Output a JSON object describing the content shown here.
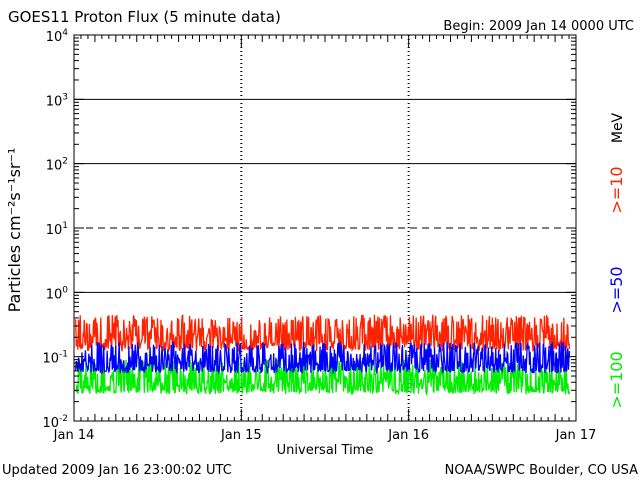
{
  "header": {
    "title": "GOES11 Proton Flux (5 minute data)",
    "begin": "Begin: 2009 Jan 14 0000 UTC"
  },
  "footer": {
    "updated": "Updated 2009 Jan 16 23:00:02 UTC",
    "credit": "NOAA/SWPC Boulder, CO USA"
  },
  "chart_data": {
    "type": "line",
    "title": "GOES11 Proton Flux (5 minute data)",
    "xlabel": "Universal Time",
    "ylabel": "Particles cm⁻²s⁻¹sr⁻¹",
    "yscale": "log",
    "ylim": [
      0.01,
      10000
    ],
    "xlim_days": [
      0,
      3
    ],
    "x_tick_labels": [
      "Jan 14",
      "Jan 15",
      "Jan 16",
      "Jan 17"
    ],
    "y_tick_labels": [
      {
        "base": "10",
        "exp": "4"
      },
      {
        "base": "10",
        "exp": "3"
      },
      {
        "base": "10",
        "exp": "2"
      },
      {
        "base": "10",
        "exp": "1"
      },
      {
        "base": "10",
        "exp": "0"
      },
      {
        "base": "10",
        "exp": "-1"
      },
      {
        "base": "10",
        "exp": "-2"
      }
    ],
    "y_tick_values": [
      10000,
      1000,
      100,
      10,
      1,
      0.1,
      0.01
    ],
    "threshold_lines": [
      {
        "value": 1000,
        "style": "solid"
      },
      {
        "value": 100,
        "style": "solid"
      },
      {
        "value": 10,
        "style": "dashed"
      },
      {
        "value": 1,
        "style": "solid"
      }
    ],
    "series": [
      {
        "name": ">=10 MeV",
        "label": ">=10",
        "color": "#ff2200",
        "typical_min": 0.12,
        "typical_max": 0.45
      },
      {
        "name": ">=50 MeV",
        "label": ">=50",
        "color": "#0000ff",
        "typical_min": 0.055,
        "typical_max": 0.17
      },
      {
        "name": ">=100 MeV",
        "label": ">=100",
        "color": "#00ee00",
        "typical_min": 0.026,
        "typical_max": 0.09
      }
    ],
    "energy_unit": "MeV"
  }
}
